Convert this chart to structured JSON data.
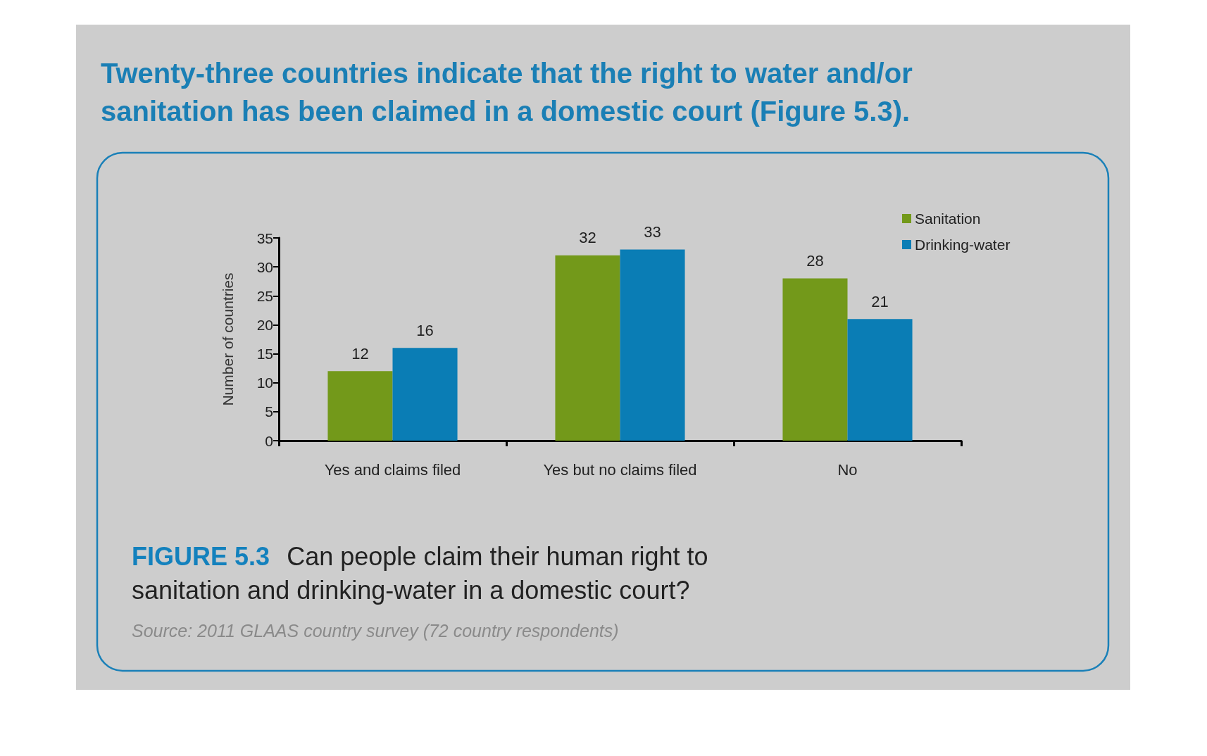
{
  "chart_data": {
    "type": "bar",
    "title": "Twenty-three countries indicate that the right to water and/or sanitation has been claimed in a domestic court (Figure 5.3).",
    "categories": [
      "Yes and claims filed",
      "Yes but no claims filed",
      "No"
    ],
    "series": [
      {
        "name": "Sanitation",
        "color": "#73991a",
        "values": [
          12,
          32,
          28
        ]
      },
      {
        "name": "Drinking-water",
        "color": "#0a7db5",
        "values": [
          16,
          33,
          21
        ]
      }
    ],
    "ylabel": "Number of countries",
    "ylim": [
      0,
      35
    ],
    "yticks": [
      0,
      5,
      10,
      15,
      20,
      25,
      30,
      35
    ],
    "grid": false,
    "legend": "top right",
    "data_labels": true,
    "annotations": [
      "FIGURE 5.3",
      "Can people claim their human right to sanitation and drinking-water in a domestic court?",
      "Source: 2011 GLAAS country survey (72 country respondents)"
    ]
  }
}
